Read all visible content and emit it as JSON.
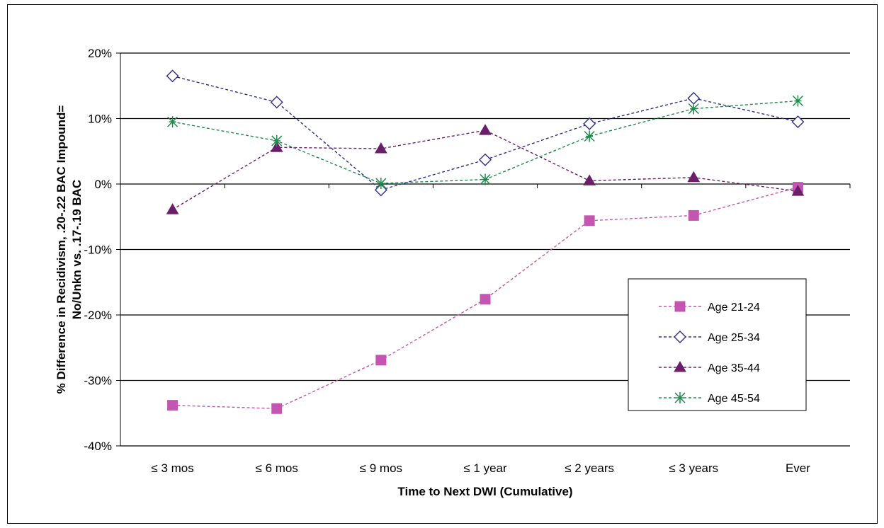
{
  "chart_data": {
    "type": "line",
    "title": "",
    "xlabel": "Time to Next  DWI (Cumulative)",
    "ylabel_lines": [
      "% Difference in Recidivism, .20-.22 BAC Impound=",
      "No/Unkn vs. .17-.19 BAC"
    ],
    "categories": [
      "≤ 3 mos",
      "≤ 6 mos",
      "≤ 9 mos",
      "≤ 1 year",
      "≤ 2 years",
      "≤ 3 years",
      "Ever"
    ],
    "ylim": [
      -40,
      20
    ],
    "yticks": [
      20,
      10,
      0,
      -10,
      -20,
      -30,
      -40
    ],
    "ytick_labels": [
      "20%",
      "10%",
      "0%",
      "-10%",
      "-20%",
      "-30%",
      "-40%"
    ],
    "grid": "horizontal",
    "legend_position": "lower-right",
    "series": [
      {
        "name": "Age 21-24",
        "color": "#c455b0",
        "marker": "square",
        "values": [
          -33.8,
          -34.3,
          -26.9,
          -17.6,
          -5.6,
          -4.8,
          -0.5
        ]
      },
      {
        "name": "Age 25-34",
        "color": "#2e2f8a",
        "marker": "diamond-open",
        "values": [
          16.5,
          12.5,
          -0.9,
          3.7,
          9.2,
          13.1,
          9.5
        ]
      },
      {
        "name": "Age 35-44",
        "color": "#6b1f6b",
        "marker": "triangle",
        "values": [
          -3.9,
          5.6,
          5.4,
          8.2,
          0.5,
          1.0,
          -1.1
        ]
      },
      {
        "name": "Age 45-54",
        "color": "#1e8a4a",
        "marker": "asterisk",
        "values": [
          9.5,
          6.6,
          0.1,
          0.7,
          7.3,
          11.5,
          12.7
        ]
      }
    ]
  }
}
